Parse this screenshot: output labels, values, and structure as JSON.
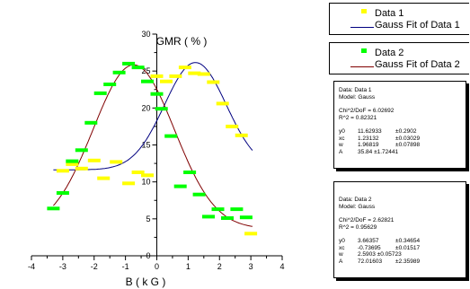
{
  "chart_data": {
    "type": "scatter",
    "title": "GMR ( % )",
    "xlabel": "B ( k G )",
    "ylabel": "",
    "xlim": [
      -4,
      4
    ],
    "ylim": [
      0,
      30
    ],
    "xticks": [
      "-4",
      "-3",
      "-2",
      "-1",
      "0",
      "1",
      "2",
      "3",
      "4"
    ],
    "yticks": [
      "0",
      "5",
      "10",
      "15",
      "20",
      "25",
      "30"
    ],
    "series": [
      {
        "name": "Data 1",
        "color": "#ffff00",
        "marker": "square",
        "x": [
          -3.0,
          -2.7,
          -2.4,
          -2.0,
          -1.7,
          -1.3,
          -0.9,
          -0.6,
          -0.3,
          0.0,
          0.3,
          0.6,
          0.9,
          1.2,
          1.5,
          1.8,
          2.1,
          2.4,
          2.7,
          3.0
        ],
        "y": [
          11.5,
          12.4,
          11.8,
          12.9,
          10.5,
          12.7,
          9.8,
          11.3,
          10.9,
          24.3,
          23.6,
          24.3,
          25.5,
          24.7,
          24.6,
          23.5,
          20.6,
          17.5,
          16.3,
          3.0
        ]
      },
      {
        "name": "Data 2",
        "color": "#00ff00",
        "marker": "square",
        "x": [
          -3.3,
          -3.0,
          -2.7,
          -2.4,
          -2.1,
          -1.8,
          -1.5,
          -1.2,
          -0.9,
          -0.6,
          -0.3,
          0.0,
          0.15,
          0.45,
          0.75,
          1.05,
          1.35,
          1.65,
          1.95,
          2.25,
          2.55,
          2.85
        ],
        "y": [
          6.4,
          8.5,
          12.8,
          14.3,
          18.0,
          22.0,
          23.2,
          24.8,
          26.0,
          25.5,
          23.6,
          21.9,
          19.9,
          16.2,
          9.4,
          11.3,
          8.3,
          5.3,
          6.3,
          5.1,
          6.3,
          5.2
        ]
      }
    ],
    "fits": [
      {
        "name": "Gauss Fit of Data 1",
        "color": "#000080",
        "y0": 11.62933,
        "xc": 1.23132,
        "w": 1.96819,
        "A": 35.84
      },
      {
        "name": "Gauss Fit of Data 2",
        "color": "#800000",
        "y0": 3.66357,
        "xc": -0.73695,
        "w": 2.5903,
        "A": 72.01603
      }
    ]
  },
  "legend": [
    {
      "name": "Data 1",
      "fit": "Gauss Fit of Data 1"
    },
    {
      "name": "Data 2",
      "fit": "Gauss Fit of Data 2"
    }
  ],
  "stats": [
    {
      "data_line": "Data: Data 1",
      "model_line": "Model: Gauss",
      "chi_line": "Chi^2/DoF     = 6.02692",
      "r2_line": "R^2   =  0.82321",
      "params": [
        {
          "k": "y0",
          "v": "11.62933",
          "e": "±0.2902"
        },
        {
          "k": "xc",
          "v": "1.23132",
          "e": "±0.03029"
        },
        {
          "k": "w",
          "v": "1.96819",
          "e": "±0.07898"
        },
        {
          "k": "A",
          "v": "35.84  ±1.72441",
          "e": ""
        }
      ]
    },
    {
      "data_line": "Data: Data 2",
      "model_line": "Model: Gauss",
      "chi_line": "Chi^2/DoF     = 2.62821",
      "r2_line": "R^2   =  0.95629",
      "params": [
        {
          "k": "y0",
          "v": "3.66357",
          "e": "±0.34654"
        },
        {
          "k": "xc",
          "v": "-0.73695",
          "e": "±0.01517"
        },
        {
          "k": "w",
          "v": "2.5903 ±0.05723",
          "e": ""
        },
        {
          "k": "A",
          "v": "72.01603",
          "e": "±2.35989"
        }
      ]
    }
  ]
}
